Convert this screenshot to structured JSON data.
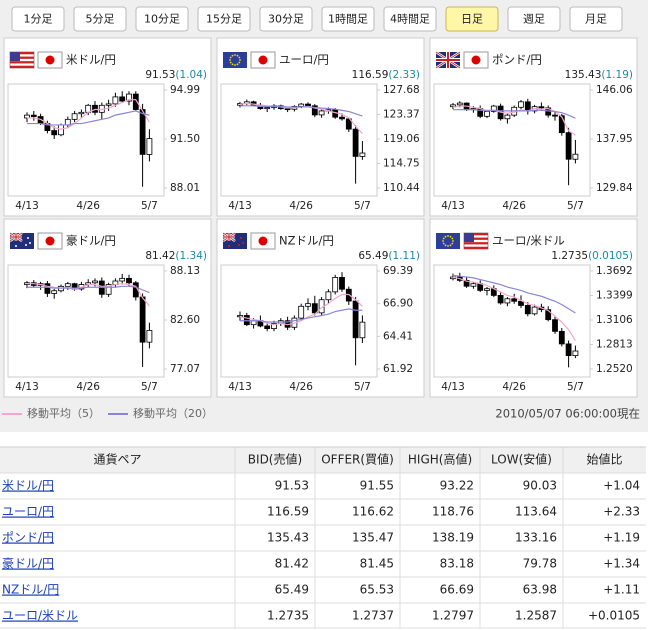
{
  "tabs": [
    "1分足",
    "5分足",
    "10分足",
    "15分足",
    "30分足",
    "1時間足",
    "4時間足",
    "日足",
    "週足",
    "月足"
  ],
  "active_tab": 7,
  "chart_data": [
    {
      "type": "candlestick",
      "title": "米ドル/円",
      "price": "91.53",
      "change": "(1.04)",
      "categories": [
        "4/13",
        null,
        null,
        null,
        null,
        null,
        null,
        null,
        null,
        "4/26",
        null,
        null,
        null,
        null,
        null,
        null,
        null,
        null,
        "5/7"
      ],
      "open": [
        93.0,
        93.2,
        93.1,
        92.6,
        92.1,
        91.8,
        92.5,
        92.9,
        93.3,
        93.4,
        93.9,
        93.4,
        93.9,
        94.0,
        94.5,
        94.2,
        94.7,
        93.6,
        90.4
      ],
      "high": [
        93.4,
        93.5,
        93.3,
        92.8,
        92.4,
        92.6,
        93.1,
        93.5,
        93.6,
        94.0,
        94.2,
        94.1,
        94.3,
        94.8,
        94.9,
        94.9,
        94.9,
        94.0,
        92.2
      ],
      "low": [
        92.7,
        92.8,
        92.5,
        91.9,
        91.5,
        91.7,
        92.3,
        92.7,
        93.0,
        93.2,
        93.2,
        92.9,
        93.5,
        93.8,
        94.1,
        93.9,
        93.5,
        88.1,
        89.9
      ],
      "close": [
        93.2,
        93.1,
        92.6,
        92.1,
        91.8,
        92.5,
        92.9,
        93.3,
        93.4,
        93.9,
        93.4,
        93.9,
        94.0,
        94.5,
        94.2,
        94.7,
        93.6,
        90.4,
        91.53
      ],
      "ma5": [
        93.0,
        93.0,
        92.9,
        92.6,
        92.3,
        92.2,
        92.3,
        92.6,
        93.0,
        93.4,
        93.6,
        93.6,
        93.7,
        93.9,
        94.1,
        94.3,
        94.3,
        93.5,
        92.7
      ],
      "ma20": [
        92.6,
        92.6,
        92.6,
        92.5,
        92.5,
        92.5,
        92.5,
        92.6,
        92.6,
        92.7,
        92.8,
        92.9,
        93.0,
        93.2,
        93.3,
        93.4,
        93.5,
        93.3,
        93.2
      ],
      "ylim": [
        88.01,
        94.99
      ],
      "yticks": [
        94.99,
        {
          "value": 91.5,
          "label": "91.50"
        },
        88.01
      ]
    },
    {
      "type": "candlestick",
      "title": "ユーロ/円",
      "price": "116.59",
      "change": "(2.33)",
      "categories": [
        "4/13",
        null,
        null,
        null,
        null,
        null,
        null,
        null,
        null,
        "4/26",
        null,
        null,
        null,
        null,
        null,
        null,
        null,
        null,
        "5/7"
      ],
      "open": [
        125.0,
        125.3,
        125.6,
        125.0,
        124.4,
        124.6,
        124.9,
        124.4,
        124.3,
        124.8,
        125.2,
        124.9,
        123.3,
        124.0,
        124.2,
        122.9,
        122.6,
        120.8,
        116.0
      ],
      "high": [
        125.6,
        126.0,
        125.8,
        125.4,
        124.9,
        125.2,
        125.1,
        124.7,
        125.0,
        125.4,
        125.5,
        125.2,
        124.3,
        124.6,
        124.5,
        123.6,
        122.9,
        121.5,
        118.7
      ],
      "low": [
        124.6,
        125.0,
        124.8,
        124.2,
        123.8,
        124.2,
        124.2,
        123.8,
        123.9,
        124.5,
        124.7,
        122.9,
        122.8,
        123.5,
        122.6,
        122.3,
        120.3,
        111.2,
        115.4
      ],
      "close": [
        125.3,
        125.6,
        125.0,
        124.4,
        124.6,
        124.9,
        124.4,
        124.3,
        124.8,
        125.2,
        124.9,
        123.3,
        124.0,
        124.2,
        122.9,
        122.6,
        120.8,
        116.0,
        116.59
      ],
      "ma5": [
        125.2,
        125.3,
        125.2,
        125.0,
        124.9,
        124.8,
        124.7,
        124.5,
        124.6,
        124.7,
        124.8,
        124.5,
        124.3,
        124.0,
        123.7,
        123.4,
        122.8,
        121.3,
        120.0
      ],
      "ma20": [
        124.9,
        124.9,
        124.9,
        124.8,
        124.8,
        124.8,
        124.8,
        124.7,
        124.7,
        124.7,
        124.7,
        124.6,
        124.5,
        124.4,
        124.3,
        124.1,
        123.9,
        123.5,
        123.1
      ],
      "ylim": [
        110.44,
        127.68
      ],
      "yticks": [
        127.68,
        123.37,
        119.06,
        114.75,
        110.44
      ]
    },
    {
      "type": "candlestick",
      "title": "ポンド/円",
      "price": "135.43",
      "change": "(1.19)",
      "categories": [
        "4/13",
        null,
        null,
        null,
        null,
        null,
        null,
        null,
        null,
        "4/26",
        null,
        null,
        null,
        null,
        null,
        null,
        null,
        null,
        "5/7"
      ],
      "open": [
        143.3,
        143.6,
        143.9,
        142.8,
        143.0,
        141.7,
        142.5,
        143.4,
        141.3,
        141.9,
        143.2,
        144.1,
        142.6,
        143.3,
        143.1,
        141.9,
        141.8,
        139.0,
        134.6
      ],
      "high": [
        143.9,
        144.2,
        144.0,
        143.4,
        143.5,
        142.7,
        143.6,
        143.8,
        142.2,
        143.5,
        144.4,
        144.6,
        143.6,
        144.0,
        143.5,
        142.5,
        142.1,
        139.8,
        137.8
      ],
      "low": [
        142.9,
        143.2,
        142.6,
        142.3,
        141.4,
        141.4,
        142.3,
        141.0,
        140.5,
        141.6,
        142.9,
        142.0,
        142.2,
        142.6,
        141.5,
        141.0,
        138.5,
        130.3,
        133.9
      ],
      "close": [
        143.6,
        143.9,
        142.8,
        143.0,
        141.7,
        142.5,
        143.4,
        141.3,
        141.9,
        143.2,
        144.1,
        142.6,
        143.3,
        143.1,
        141.9,
        141.8,
        139.0,
        134.6,
        135.43
      ],
      "ma5": [
        143.2,
        143.4,
        143.4,
        143.2,
        143.0,
        142.6,
        142.7,
        142.4,
        142.2,
        142.4,
        142.8,
        142.6,
        143.0,
        142.9,
        143.0,
        142.5,
        141.6,
        139.3,
        138.6
      ],
      "ma20": [
        142.8,
        142.8,
        142.8,
        142.8,
        142.7,
        142.7,
        142.7,
        142.6,
        142.6,
        142.6,
        142.6,
        142.6,
        142.7,
        142.7,
        142.6,
        142.5,
        142.3,
        141.9,
        141.4
      ],
      "ylim": [
        129.84,
        146.06
      ],
      "yticks": [
        146.06,
        137.95,
        129.84
      ]
    },
    {
      "type": "candlestick",
      "title": "豪ドル/円",
      "price": "81.42",
      "change": "(1.34)",
      "categories": [
        "4/13",
        null,
        null,
        null,
        null,
        null,
        null,
        null,
        null,
        "4/26",
        null,
        null,
        null,
        null,
        null,
        null,
        null,
        null,
        "5/7"
      ],
      "open": [
        86.6,
        86.8,
        86.5,
        86.7,
        85.6,
        85.9,
        86.4,
        86.7,
        86.1,
        86.6,
        86.8,
        87.0,
        85.5,
        86.6,
        87.0,
        87.3,
        86.8,
        85.2,
        80.1
      ],
      "high": [
        87.0,
        87.1,
        86.9,
        87.0,
        86.1,
        86.6,
        86.9,
        86.8,
        86.9,
        87.2,
        87.3,
        87.4,
        86.8,
        87.3,
        87.8,
        87.7,
        87.0,
        85.6,
        82.3
      ],
      "low": [
        86.2,
        86.3,
        86.0,
        85.2,
        85.0,
        85.7,
        86.0,
        85.9,
        85.9,
        86.3,
        86.4,
        85.1,
        85.2,
        86.3,
        86.6,
        86.4,
        84.8,
        77.3,
        79.4
      ],
      "close": [
        86.8,
        86.5,
        86.7,
        85.6,
        85.9,
        86.4,
        86.7,
        86.1,
        86.6,
        86.8,
        87.0,
        85.5,
        86.6,
        87.0,
        87.3,
        86.8,
        85.2,
        80.1,
        81.42
      ],
      "ma5": [
        86.7,
        86.7,
        86.6,
        86.4,
        86.3,
        86.2,
        86.3,
        86.1,
        86.3,
        86.6,
        86.6,
        86.4,
        86.4,
        86.6,
        86.7,
        86.6,
        86.4,
        85.1,
        84.2
      ],
      "ma20": [
        86.3,
        86.3,
        86.3,
        86.3,
        86.2,
        86.2,
        86.2,
        86.2,
        86.2,
        86.3,
        86.3,
        86.3,
        86.3,
        86.3,
        86.4,
        86.4,
        86.3,
        86.0,
        85.7
      ],
      "ylim": [
        77.07,
        88.13
      ],
      "yticks": [
        88.13,
        {
          "value": 82.6,
          "label": "82.60"
        },
        77.07
      ]
    },
    {
      "type": "candlestick",
      "title": "NZドル/円",
      "price": "65.49",
      "change": "(1.11)",
      "categories": [
        "4/13",
        null,
        null,
        null,
        null,
        null,
        null,
        null,
        null,
        "4/26",
        null,
        null,
        null,
        null,
        null,
        null,
        null,
        null,
        "5/7"
      ],
      "open": [
        65.9,
        66.0,
        65.3,
        65.6,
        65.2,
        65.0,
        65.4,
        65.6,
        65.1,
        65.8,
        66.7,
        66.9,
        66.2,
        67.2,
        67.8,
        68.9,
        68.0,
        67.1,
        64.3
      ],
      "high": [
        66.3,
        66.2,
        65.8,
        66.0,
        65.5,
        65.6,
        65.8,
        65.9,
        66.0,
        66.9,
        67.3,
        67.5,
        67.4,
        68.0,
        69.1,
        69.3,
        68.2,
        67.4,
        66.0
      ],
      "low": [
        65.6,
        65.2,
        65.0,
        65.1,
        64.8,
        64.8,
        65.2,
        64.9,
        64.9,
        65.6,
        66.4,
        66.0,
        66.0,
        66.9,
        67.6,
        67.8,
        66.8,
        62.2,
        63.9
      ],
      "close": [
        66.0,
        65.3,
        65.6,
        65.2,
        65.0,
        65.4,
        65.6,
        65.1,
        65.8,
        66.7,
        66.9,
        66.2,
        67.2,
        67.8,
        68.9,
        68.0,
        67.1,
        64.3,
        65.49
      ],
      "ma5": [
        65.9,
        65.8,
        65.7,
        65.6,
        65.4,
        65.3,
        65.4,
        65.3,
        65.4,
        65.6,
        65.9,
        66.1,
        66.6,
        66.9,
        67.3,
        67.6,
        67.6,
        67.2,
        66.7
      ],
      "ma20": [
        65.6,
        65.6,
        65.6,
        65.6,
        65.5,
        65.5,
        65.5,
        65.5,
        65.6,
        65.7,
        65.8,
        65.9,
        66.0,
        66.1,
        66.3,
        66.4,
        66.5,
        66.4,
        66.4
      ],
      "ylim": [
        61.92,
        69.39
      ],
      "yticks": [
        69.39,
        {
          "value": 66.9,
          "label": "66.90"
        },
        64.41,
        61.92
      ]
    },
    {
      "type": "candlestick",
      "title": "ユーロ/米ドル",
      "price": "1.2735",
      "change": "(0.0105)",
      "categories": [
        "4/13",
        null,
        null,
        null,
        null,
        null,
        null,
        null,
        null,
        "4/26",
        null,
        null,
        null,
        null,
        null,
        null,
        null,
        null,
        "5/7"
      ],
      "open": [
        1.36,
        1.362,
        1.358,
        1.351,
        1.354,
        1.346,
        1.348,
        1.34,
        1.331,
        1.336,
        1.333,
        1.328,
        1.318,
        1.326,
        1.323,
        1.311,
        1.297,
        1.282,
        1.268
      ],
      "high": [
        1.366,
        1.367,
        1.362,
        1.356,
        1.358,
        1.35,
        1.352,
        1.344,
        1.338,
        1.342,
        1.34,
        1.332,
        1.329,
        1.33,
        1.327,
        1.315,
        1.301,
        1.286,
        1.28
      ],
      "low": [
        1.358,
        1.356,
        1.349,
        1.348,
        1.344,
        1.34,
        1.338,
        1.329,
        1.327,
        1.33,
        1.325,
        1.315,
        1.316,
        1.32,
        1.309,
        1.294,
        1.279,
        1.254,
        1.265
      ],
      "close": [
        1.362,
        1.358,
        1.351,
        1.354,
        1.346,
        1.348,
        1.34,
        1.331,
        1.336,
        1.333,
        1.328,
        1.318,
        1.326,
        1.323,
        1.311,
        1.297,
        1.282,
        1.268,
        1.2735
      ],
      "ma5": [
        1.362,
        1.36,
        1.357,
        1.356,
        1.354,
        1.352,
        1.348,
        1.344,
        1.34,
        1.338,
        1.334,
        1.33,
        1.328,
        1.325,
        1.322,
        1.315,
        1.308,
        1.299,
        1.286
      ],
      "ma20": [
        1.364,
        1.363,
        1.362,
        1.361,
        1.359,
        1.357,
        1.355,
        1.353,
        1.35,
        1.348,
        1.346,
        1.343,
        1.341,
        1.339,
        1.336,
        1.333,
        1.329,
        1.324,
        1.319
      ],
      "ylim": [
        1.252,
        1.3692
      ],
      "yticks": [
        1.3692,
        1.3399,
        1.3106,
        1.2813,
        {
          "value": 1.252,
          "label": "1.2520"
        }
      ]
    }
  ],
  "legend": [
    {
      "name": "移動平均（5）",
      "color": "#f4a6cc"
    },
    {
      "name": "移動平均（20）",
      "color": "#8a86d6"
    }
  ],
  "timestamp": "2010/05/07 06:00:00現在",
  "table": {
    "header": [
      "通貨ペア",
      "BID(売値)",
      "OFFER(買値)",
      "HIGH(高値)",
      "LOW(安値)",
      "始値比"
    ],
    "rows": [
      [
        "米ドル/円",
        "91.53",
        "91.55",
        "93.22",
        "90.03",
        "+1.04"
      ],
      [
        "ユーロ/円",
        "116.59",
        "116.62",
        "118.76",
        "113.64",
        "+2.33"
      ],
      [
        "ポンド/円",
        "135.43",
        "135.47",
        "138.19",
        "133.16",
        "+1.19"
      ],
      [
        "豪ドル/円",
        "81.42",
        "81.45",
        "83.18",
        "79.78",
        "+1.34"
      ],
      [
        "NZドル/円",
        "65.49",
        "65.53",
        "66.69",
        "63.98",
        "+1.11"
      ],
      [
        "ユーロ/米ドル",
        "1.2735",
        "1.2737",
        "1.2797",
        "1.2587",
        "+0.0105"
      ]
    ]
  }
}
